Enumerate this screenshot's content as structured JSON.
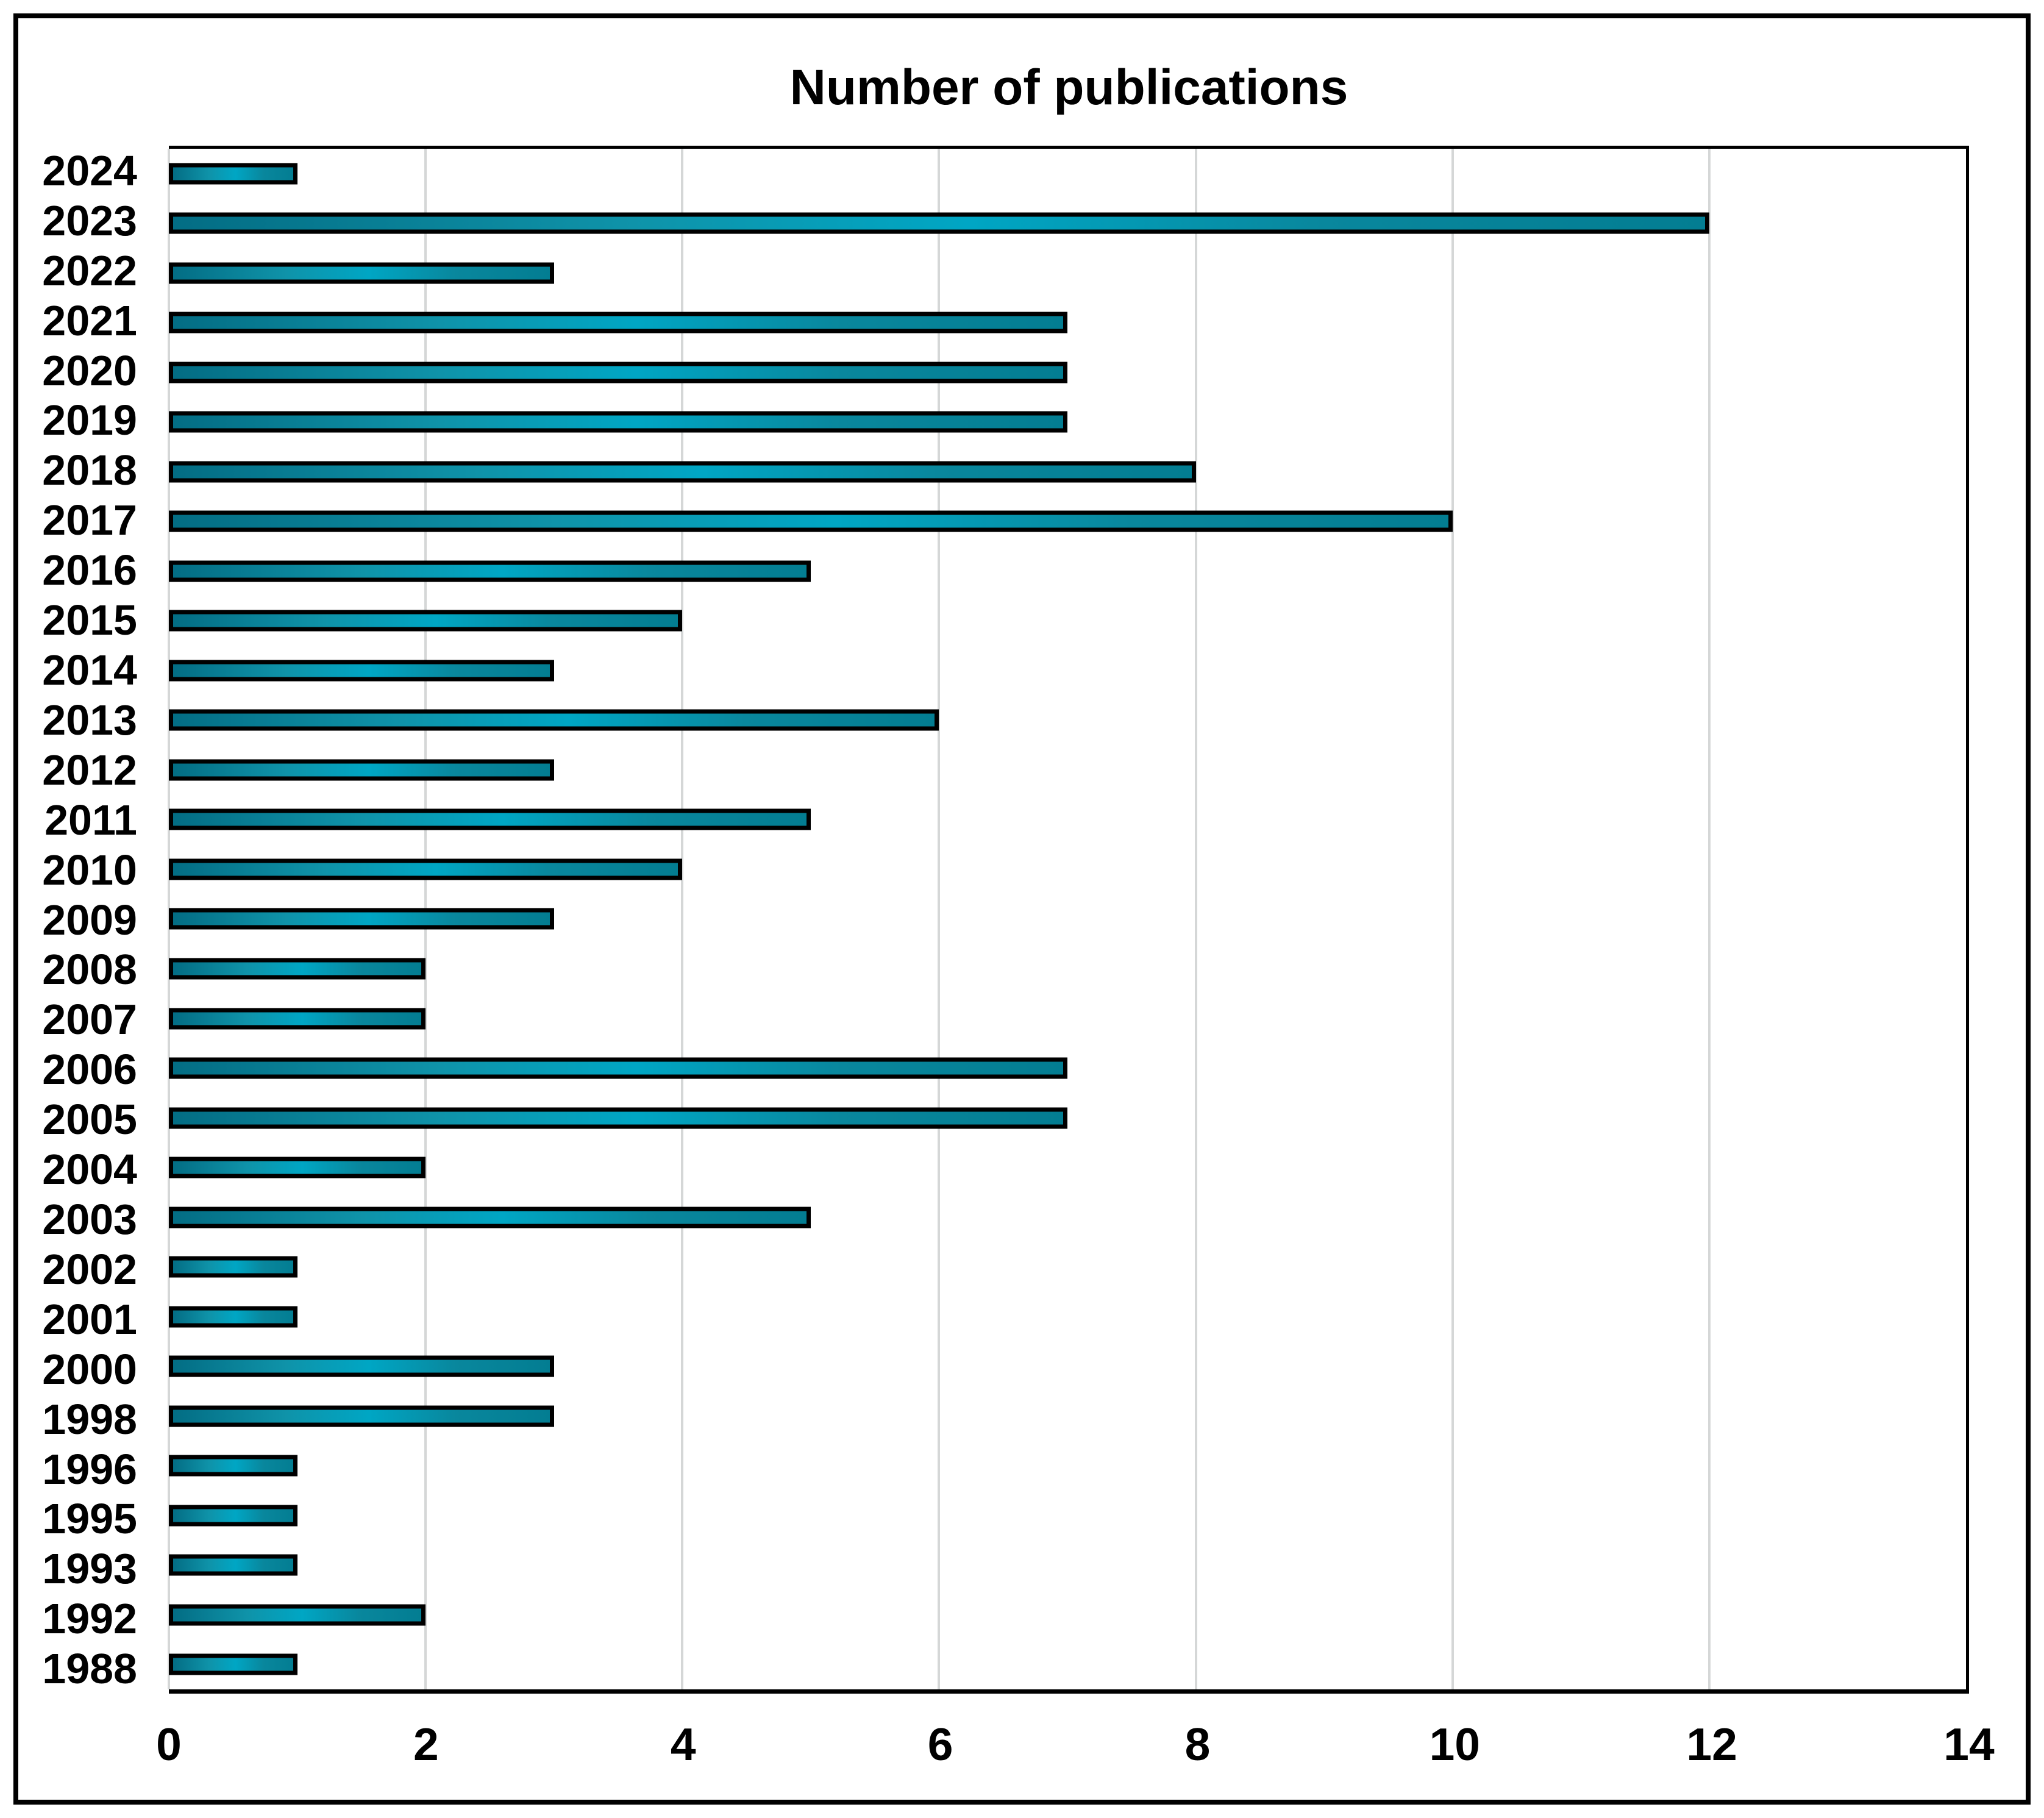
{
  "title": "Number of publications",
  "chart_data": {
    "type": "bar",
    "orientation": "horizontal",
    "title": "Number of publications",
    "categories": [
      "2024",
      "2023",
      "2022",
      "2021",
      "2020",
      "2019",
      "2018",
      "2017",
      "2016",
      "2015",
      "2014",
      "2013",
      "2012",
      "2011",
      "2010",
      "2009",
      "2008",
      "2007",
      "2006",
      "2005",
      "2004",
      "2003",
      "2002",
      "2001",
      "2000",
      "1998",
      "1996",
      "1995",
      "1993",
      "1992",
      "1988"
    ],
    "values": [
      1,
      12,
      3,
      7,
      7,
      7,
      8,
      10,
      5,
      4,
      3,
      6,
      3,
      5,
      4,
      3,
      2,
      2,
      7,
      7,
      2,
      5,
      1,
      1,
      3,
      3,
      1,
      1,
      1,
      2,
      1
    ],
    "xlabel": "",
    "ylabel": "",
    "xlim": [
      0,
      14
    ],
    "xticks": [
      0,
      2,
      4,
      6,
      8,
      10,
      12,
      14
    ],
    "grid": true,
    "legend": "none",
    "colors": {
      "bar_edge_dark": "#036d84",
      "bar_mid_light": "#00a6c4",
      "bar_border": "#000000",
      "gridline": "#d5d7d7",
      "frame": "#000000",
      "text": "#000000",
      "background": "#ffffff"
    }
  }
}
